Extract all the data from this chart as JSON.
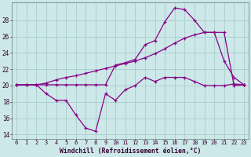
{
  "bg_color": "#cce8e8",
  "line_color": "#880088",
  "grid_color": "#aacccc",
  "xlabel": "Windchill (Refroidissement éolien,°C)",
  "xlim_min": -0.5,
  "xlim_max": 23.5,
  "ylim_min": 13.5,
  "ylim_max": 30.2,
  "yticks": [
    14,
    16,
    18,
    20,
    22,
    24,
    26,
    28
  ],
  "xticks": [
    0,
    1,
    2,
    3,
    4,
    5,
    6,
    7,
    8,
    9,
    10,
    11,
    12,
    13,
    14,
    15,
    16,
    17,
    18,
    19,
    20,
    21,
    22,
    23
  ],
  "hours": [
    0,
    1,
    2,
    3,
    4,
    5,
    6,
    7,
    8,
    9,
    10,
    11,
    12,
    13,
    14,
    15,
    16,
    17,
    18,
    19,
    20,
    21,
    22,
    23
  ],
  "line1": [
    20.1,
    20.1,
    20.1,
    19.0,
    18.2,
    18.2,
    16.4,
    14.8,
    14.4,
    19.0,
    18.2,
    19.5,
    20.0,
    21.0,
    20.5,
    21.0,
    21.0,
    21.0,
    20.5,
    20.0,
    20.0,
    20.0,
    20.2,
    20.1
  ],
  "line2": [
    20.1,
    20.1,
    20.1,
    20.1,
    20.1,
    20.1,
    20.1,
    20.1,
    20.1,
    20.1,
    22.5,
    22.8,
    23.2,
    25.0,
    25.5,
    27.8,
    29.5,
    29.3,
    28.0,
    26.5,
    26.5,
    23.0,
    21.0,
    20.1
  ],
  "line3": [
    20.1,
    20.1,
    20.1,
    20.3,
    20.7,
    21.0,
    21.2,
    21.5,
    21.8,
    22.1,
    22.4,
    22.7,
    23.0,
    23.4,
    23.9,
    24.5,
    25.2,
    25.8,
    26.2,
    26.5,
    26.5,
    26.5,
    20.0,
    20.1
  ]
}
